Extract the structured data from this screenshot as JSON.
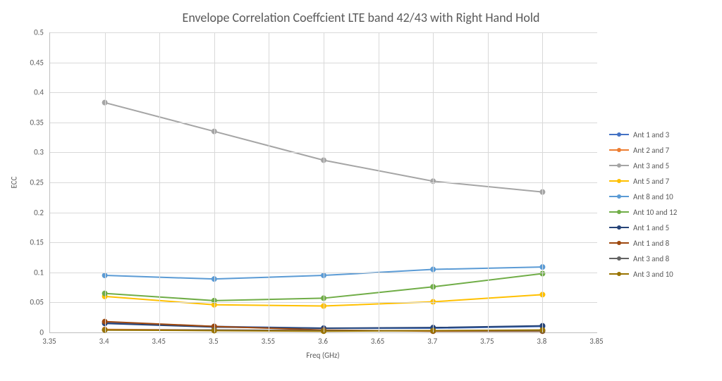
{
  "chart": {
    "type": "line",
    "title": "Envelope Correlation Coeffcient LTE band 42/43 with Right Hand Hold",
    "title_fontsize": 18,
    "title_color": "#595959",
    "background_color": "#ffffff",
    "grid_color": "#d9d9d9",
    "axis_color": "#bfbfbf",
    "tick_color": "#595959",
    "tick_fontsize": 11,
    "xlabel": "Freq (GHz)",
    "ylabel": "ECC",
    "xlim": [
      3.35,
      3.85
    ],
    "ylim": [
      0,
      0.5
    ],
    "xtick_step": 0.05,
    "ytick_step": 0.05,
    "x": [
      3.4,
      3.5,
      3.6,
      3.7,
      3.8
    ],
    "line_width": 2,
    "marker_radius": 3.5,
    "series": [
      {
        "name": "Ant 1 and 3",
        "color": "#4472c4",
        "y": [
          0.017,
          0.01,
          0.007,
          0.007,
          0.01
        ]
      },
      {
        "name": "Ant 2 and 7",
        "color": "#ed7d31",
        "y": [
          0.005,
          0.004,
          0.003,
          0.003,
          0.003
        ]
      },
      {
        "name": "Ant 3 and 5",
        "color": "#a5a5a5",
        "y": [
          0.383,
          0.335,
          0.287,
          0.252,
          0.234
        ]
      },
      {
        "name": "Ant 5 and 7",
        "color": "#ffc000",
        "y": [
          0.06,
          0.046,
          0.044,
          0.051,
          0.063
        ]
      },
      {
        "name": "Ant 8 and 10",
        "color": "#5b9bd5",
        "y": [
          0.095,
          0.089,
          0.095,
          0.105,
          0.109
        ]
      },
      {
        "name": "Ant 10 and 12",
        "color": "#70ad47",
        "y": [
          0.065,
          0.053,
          0.057,
          0.076,
          0.098
        ]
      },
      {
        "name": "Ant 1 and 5",
        "color": "#264478",
        "y": [
          0.015,
          0.009,
          0.007,
          0.008,
          0.011
        ]
      },
      {
        "name": "Ant 1 and 8",
        "color": "#9e480e",
        "y": [
          0.018,
          0.01,
          0.004,
          0.002,
          0.002
        ]
      },
      {
        "name": "Ant 3 and 8",
        "color": "#636363",
        "y": [
          0.004,
          0.004,
          0.003,
          0.003,
          0.003
        ]
      },
      {
        "name": "Ant 3 and 10",
        "color": "#997300",
        "y": [
          0.004,
          0.003,
          0.002,
          0.003,
          0.004
        ]
      }
    ]
  }
}
